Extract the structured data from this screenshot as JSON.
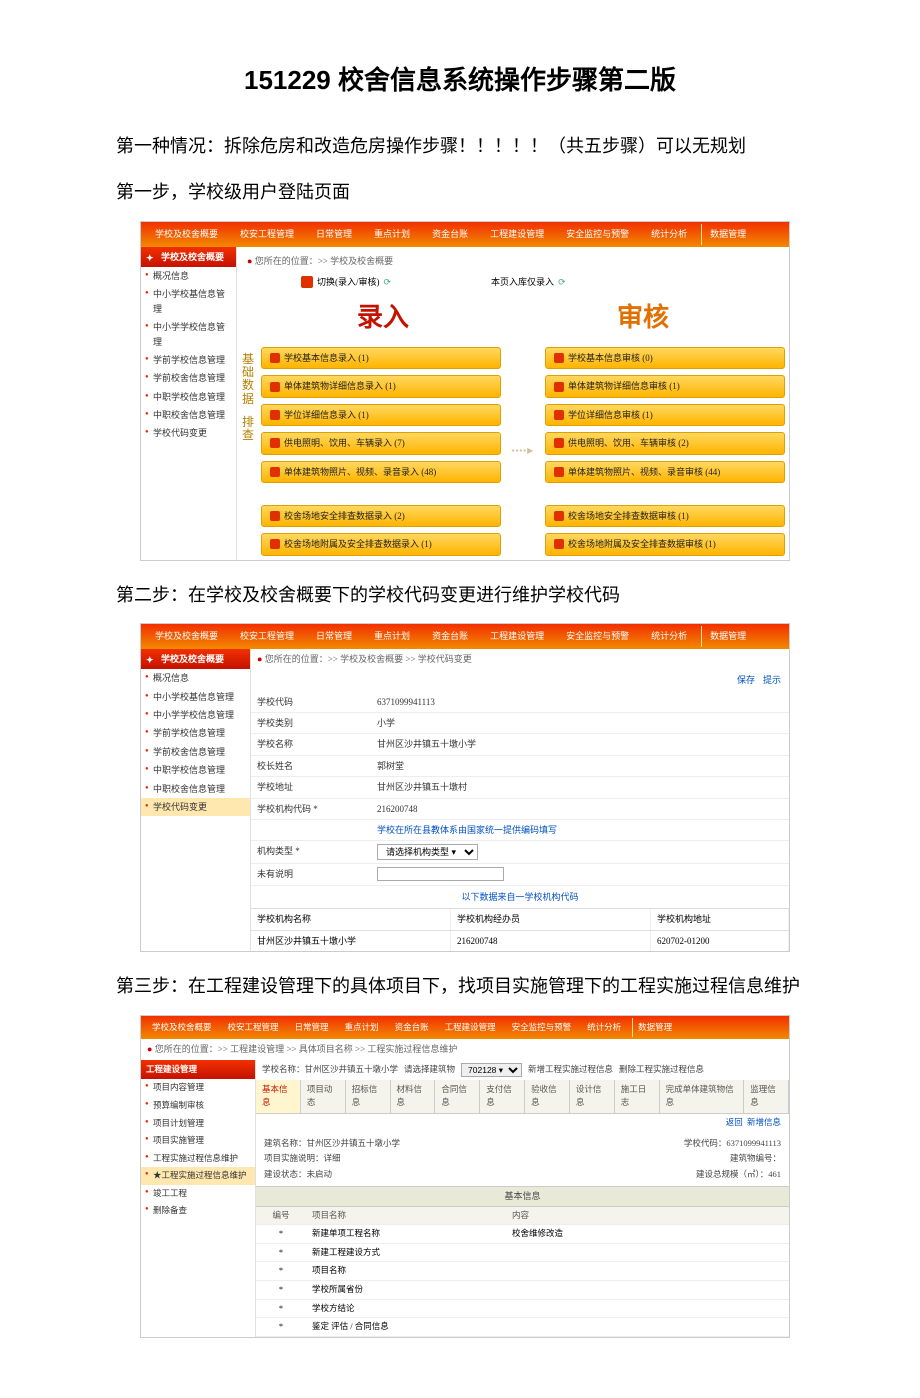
{
  "title": "151229 校舍信息系统操作步骤第二版",
  "para1": "第一种情况：拆除危房和改造危房操作步骤！！！！！（共五步骤）可以无规划",
  "para2": "第一步，学校级用户登陆页面",
  "para3": "第二步：在学校及校舍概要下的学校代码变更进行维护学校代码",
  "para4": "第三步：在工程建设管理下的具体项目下，找项目实施管理下的工程实施过程信息维护",
  "topnav": {
    "items": [
      "学校及校舍概要",
      "校安工程管理",
      "日常管理",
      "重点计划",
      "资金台账",
      "工程建设管理",
      "安全监控与预警",
      "统计分析",
      "数据管理"
    ]
  },
  "fig1": {
    "crumb": "您所在的位置：>> 学校及校舍概要",
    "sidebar_head": "学校及校舍概要",
    "sidebar": [
      "概况信息",
      "中小学校基信息管理",
      "中小学学校信息管理",
      "学前学校信息管理",
      "学前校舍信息管理",
      "中职学校信息管理",
      "中职校舍信息管理",
      "学校代码变更"
    ],
    "mode_left": "切换(录入/审核)",
    "mode_right": "本页入库仅录入",
    "head_left": "录入",
    "head_right": "审核",
    "vlabels": [
      "基础数据",
      "排查"
    ],
    "left_bars": [
      "学校基本信息录入 (1)",
      "单体建筑物详细信息录入 (1)",
      "学位详细信息录入 (1)",
      "供电照明、饮用、车辆录入 (7)",
      "单体建筑物照片、视频、录音录入 (48)",
      "校舍场地安全排查数据录入 (2)",
      "校舍场地附属及安全排查数据录入 (1)"
    ],
    "right_bars": [
      "学校基本信息审核 (0)",
      "单体建筑物详细信息审核 (1)",
      "学位详细信息审核 (1)",
      "供电照明、饮用、车辆审核 (2)",
      "单体建筑物照片、视频、录音审核 (44)",
      "校舍场地安全排查数据审核 (1)",
      "校舍场地附属及安全排查数据审核 (1)"
    ]
  },
  "fig2": {
    "crumb": "您所在的位置：>> 学校及校舍概要 >> 学校代码变更",
    "toolbar": {
      "save": "保存",
      "tip": "提示"
    },
    "sidebar_sel": "学校代码变更",
    "rows": [
      {
        "lab": "学校代码",
        "val": "6371099941113"
      },
      {
        "lab": "学校类别",
        "val": "小学"
      },
      {
        "lab": "学校名称",
        "val": "甘州区沙井镇五十墩小学"
      },
      {
        "lab": "校长姓名",
        "val": "郭树堂"
      },
      {
        "lab": "学校地址",
        "val": "甘州区沙井镇五十墩村"
      },
      {
        "lab": "学校机构代码 *",
        "val": "216200748"
      }
    ],
    "note": "学校在所在县教体系由国家统一提供编码填写",
    "rows2": [
      {
        "lab": "机构类型 *",
        "sel": "请选择机构类型 ▾"
      },
      {
        "lab": "未有说明",
        "inp": ""
      }
    ],
    "center": "以下数据来自一学校机构代码",
    "table": {
      "h": [
        "学校机构名称",
        "学校机构经办员",
        "学校机构地址"
      ],
      "r": [
        "甘州区沙井镇五十墩小学",
        "216200748",
        "620702-01200"
      ]
    }
  },
  "fig3": {
    "crumb": "您所在的位置：>> 工程建设管理 >> 具体项目名称 >> 工程实施过程信息维护",
    "sidebar_head": "工程建设管理",
    "sidebar": [
      "项目内容管理",
      "预算编制审核",
      "项目计划管理",
      "项目实施管理",
      "工程实施过程信息维护",
      "★工程实施过程信息维护",
      "竣工工程",
      "删除备查"
    ],
    "row_school_l": "学校名称：甘州区沙井镇五十墩小学",
    "row_sel_l": "请选择建筑物",
    "row_sel": "702128 ▾",
    "btns": [
      "新增工程实施过程信息",
      "删除工程实施过程信息"
    ],
    "tabs": [
      "基本信息",
      "项目动态",
      "招标信息",
      "材料信息",
      "合同信息",
      "支付信息",
      "验收信息",
      "设计信息",
      "施工日志",
      "完成单体建筑物信息",
      "监理信息"
    ],
    "info_left": [
      {
        "l": "建筑名称：甘州区沙井镇五十墩小学",
        "r": "学校代码：6371099941113"
      },
      {
        "l": "项目实施说明：详细",
        "r": "建筑物编号："
      },
      {
        "l": "建设状态：未启动",
        "r": "建设总规模（㎡）：461"
      }
    ],
    "rightlinks": "返回    新增信息",
    "section": "基本信息",
    "thead": [
      "编号",
      "项目名称",
      "校舍维修改造",
      "内容"
    ],
    "trows": [
      [
        "*",
        "新建单项工程名称",
        "校舍维修改造"
      ],
      [
        "*",
        "新建工程建设方式",
        ""
      ],
      [
        "*",
        "项目名称",
        ""
      ],
      [
        "*",
        "学校所属省份",
        ""
      ],
      [
        "*",
        "学校方结论",
        ""
      ],
      [
        "*",
        "鉴定 评估 / 合同信息",
        ""
      ]
    ]
  }
}
